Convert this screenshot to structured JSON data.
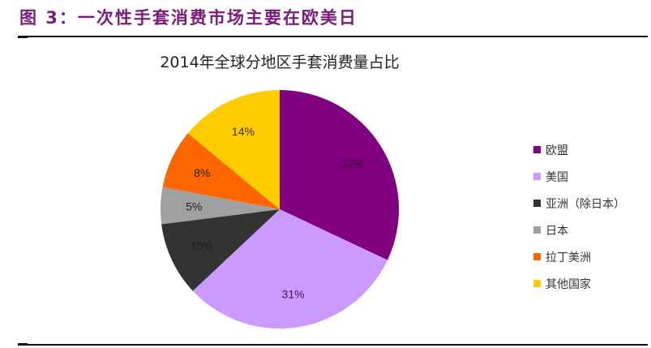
{
  "figure": {
    "title": "图 3：一次性手套消费市场主要在欧美日"
  },
  "chart_data": {
    "type": "pie",
    "title": "2014年全球分地区手套消费量占比",
    "categories": [
      "欧盟",
      "美国",
      "亚洲（除日本）",
      "日本",
      "拉丁美洲",
      "其他国家"
    ],
    "values": [
      32,
      31,
      10,
      5,
      8,
      14
    ],
    "unit": "%",
    "colors": [
      "#800080",
      "#cc99ff",
      "#333333",
      "#a0a0a0",
      "#ff6600",
      "#ffcc00"
    ],
    "labels": [
      "32%",
      "31%",
      "10%",
      "5%",
      "8%",
      "14%"
    ],
    "start_angle": "12 o'clock",
    "direction": "clockwise",
    "legend_position": "right"
  }
}
